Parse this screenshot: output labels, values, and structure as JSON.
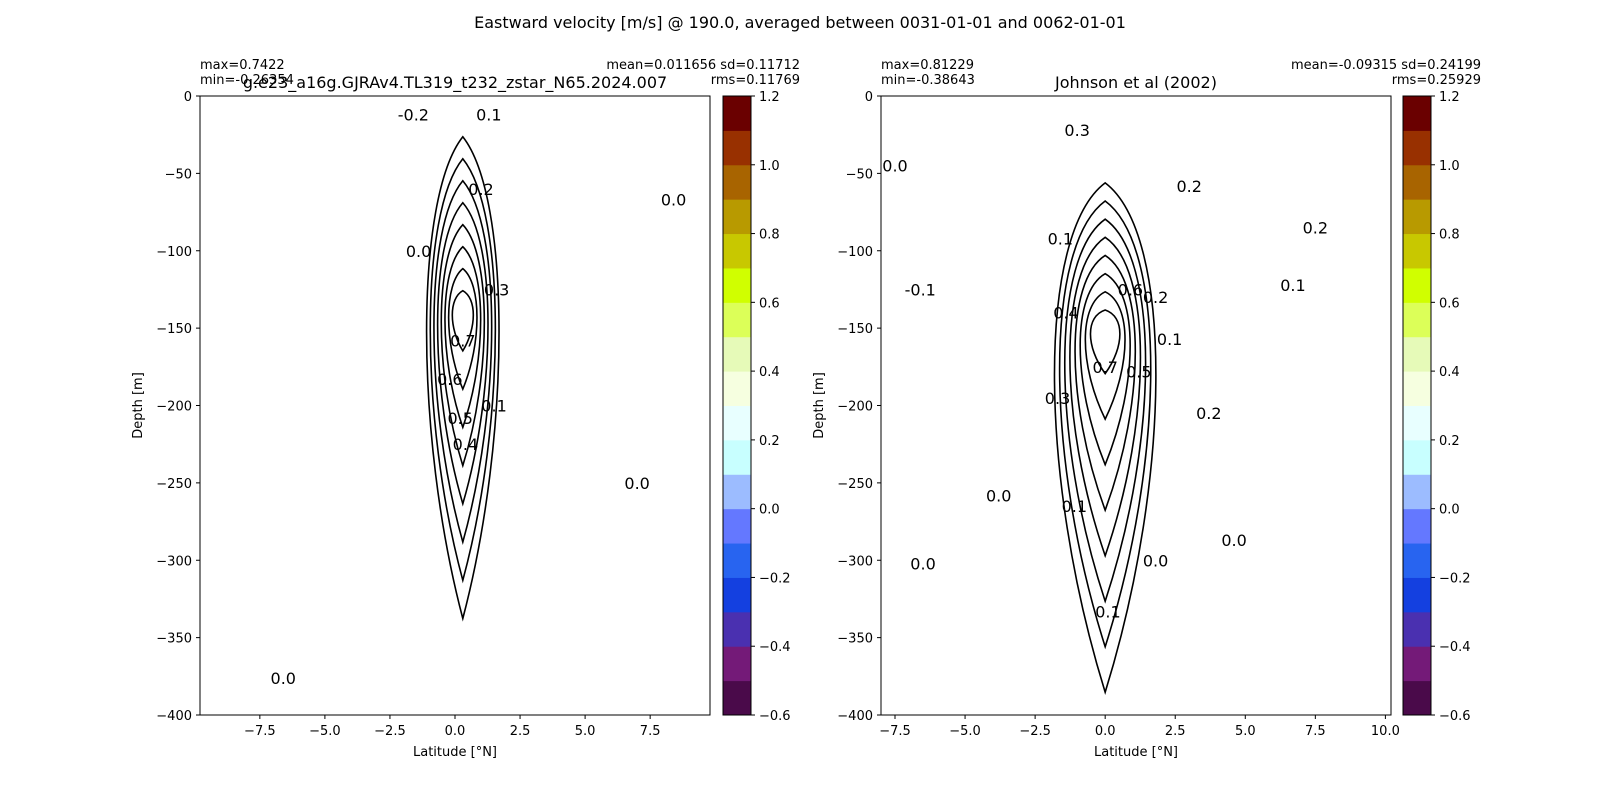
{
  "suptitle": "Eastward velocity [m/s] @ 190.0, averaged between 0031-01-01 and 0062-01-01",
  "levels": [
    -0.6,
    -0.5,
    -0.4,
    -0.3,
    -0.2,
    -0.1,
    0.0,
    0.1,
    0.2,
    0.3,
    0.4,
    0.5,
    0.6,
    0.7,
    0.8,
    0.9,
    1.0,
    1.1,
    1.2
  ],
  "colors": [
    "#4a0a4a",
    "#741a78",
    "#4a30b0",
    "#1440e0",
    "#2864f0",
    "#6478ff",
    "#9cbcff",
    "#c8ffff",
    "#e8ffff",
    "#f6ffe0",
    "#e6fab8",
    "#dcff58",
    "#d0ff00",
    "#c8c800",
    "#b89a00",
    "#a86400",
    "#983000",
    "#6a0000"
  ],
  "chart_data": [
    {
      "type": "heatmap",
      "title": "g.e23_a16g.GJRAv4.TL319_t232_zstar_N65.2024.007",
      "stats_left": [
        "max=0.7422",
        "min=-0.26354"
      ],
      "stats_right": [
        "mean=0.011656 sd=0.11712",
        "rms=0.11769"
      ],
      "xlabel": "Latitude [°N]",
      "ylabel": "Depth [m]",
      "xlim": [
        -9.8,
        9.8
      ],
      "ylim": [
        -400,
        0
      ],
      "xticks": [
        "−7.5",
        "−5.0",
        "−2.5",
        "0.0",
        "2.5",
        "5.0",
        "7.5"
      ],
      "xtick_values": [
        -7.5,
        -5.0,
        -2.5,
        0.0,
        2.5,
        5.0,
        7.5
      ],
      "yticks": [
        "0",
        "−50",
        "−100",
        "−150",
        "−200",
        "−250",
        "−300",
        "−350",
        "−400"
      ],
      "ytick_values": [
        0,
        -50,
        -100,
        -150,
        -200,
        -250,
        -300,
        -350,
        -400
      ],
      "jet": {
        "core_lat": 0.3,
        "core_depth": -140,
        "core_speed": 0.74,
        "half_width_lat": 1.0,
        "top_depth": -25,
        "bottom_depth": -350
      },
      "contour_labels": [
        {
          "text": "-0.2",
          "lat": -1.6,
          "depth": -12
        },
        {
          "text": "0.1",
          "lat": 1.3,
          "depth": -12
        },
        {
          "text": "0.2",
          "lat": 1.0,
          "depth": -60
        },
        {
          "text": "0.0",
          "lat": -1.4,
          "depth": -100
        },
        {
          "text": "0.3",
          "lat": 1.6,
          "depth": -125
        },
        {
          "text": "0.7",
          "lat": 0.3,
          "depth": -158
        },
        {
          "text": "0.6",
          "lat": -0.2,
          "depth": -183
        },
        {
          "text": "0.1",
          "lat": 1.5,
          "depth": -200
        },
        {
          "text": "0.5",
          "lat": 0.2,
          "depth": -208
        },
        {
          "text": "0.4",
          "lat": 0.4,
          "depth": -225
        },
        {
          "text": "0.0",
          "lat": 8.4,
          "depth": -67
        },
        {
          "text": "0.0",
          "lat": 7.0,
          "depth": -250
        },
        {
          "text": "0.0",
          "lat": -6.6,
          "depth": -376
        }
      ],
      "colorbar_ticks": [
        "1.2",
        "1.0",
        "0.8",
        "0.6",
        "0.4",
        "0.2",
        "0.0",
        "−0.2",
        "−0.4",
        "−0.6"
      ]
    },
    {
      "type": "heatmap",
      "title": "Johnson et al (2002)",
      "stats_left": [
        "max=0.81229",
        "min=-0.38643"
      ],
      "stats_right": [
        "mean=-0.09315 sd=0.24199",
        "rms=0.25929"
      ],
      "xlabel": "Latitude [°N]",
      "ylabel": "Depth [m]",
      "xlim": [
        -8.0,
        10.2
      ],
      "ylim": [
        -400,
        0
      ],
      "xticks": [
        "−7.5",
        "−5.0",
        "−2.5",
        "0.0",
        "2.5",
        "5.0",
        "7.5",
        "10.0"
      ],
      "xtick_values": [
        -7.5,
        -5.0,
        -2.5,
        0.0,
        2.5,
        5.0,
        7.5,
        10.0
      ],
      "yticks": [
        "0",
        "−50",
        "−100",
        "−150",
        "−200",
        "−250",
        "−300",
        "−350",
        "−400"
      ],
      "ytick_values": [
        0,
        -50,
        -100,
        -150,
        -200,
        -250,
        -300,
        -350,
        -400
      ],
      "jet": {
        "core_lat": 0.0,
        "core_depth": -150,
        "core_speed": 0.81,
        "half_width_lat": 1.3,
        "top_depth": -55,
        "bottom_depth": -400
      },
      "contour_labels": [
        {
          "text": "0.3",
          "lat": -1.0,
          "depth": -22
        },
        {
          "text": "0.2",
          "lat": 3.0,
          "depth": -58
        },
        {
          "text": "0.0",
          "lat": -7.5,
          "depth": -45
        },
        {
          "text": "0.1",
          "lat": -1.6,
          "depth": -92
        },
        {
          "text": "-0.1",
          "lat": -6.6,
          "depth": -125
        },
        {
          "text": "0.2",
          "lat": 7.5,
          "depth": -85
        },
        {
          "text": "0.1",
          "lat": 6.7,
          "depth": -122
        },
        {
          "text": "0.6",
          "lat": 0.9,
          "depth": -125
        },
        {
          "text": "0.2",
          "lat": 1.8,
          "depth": -130
        },
        {
          "text": "0.4",
          "lat": -1.4,
          "depth": -140
        },
        {
          "text": "0.1",
          "lat": 2.3,
          "depth": -157
        },
        {
          "text": "0.7",
          "lat": 0.0,
          "depth": -175
        },
        {
          "text": "0.5",
          "lat": 1.2,
          "depth": -178
        },
        {
          "text": "0.3",
          "lat": -1.7,
          "depth": -195
        },
        {
          "text": "0.2",
          "lat": 3.7,
          "depth": -205
        },
        {
          "text": "0.0",
          "lat": -3.8,
          "depth": -258
        },
        {
          "text": "0.1",
          "lat": -1.1,
          "depth": -265
        },
        {
          "text": "0.0",
          "lat": 4.6,
          "depth": -287
        },
        {
          "text": "0.0",
          "lat": -6.5,
          "depth": -302
        },
        {
          "text": "0.0",
          "lat": 1.8,
          "depth": -300
        },
        {
          "text": "0.1",
          "lat": 0.1,
          "depth": -333
        }
      ],
      "colorbar_ticks": [
        "1.2",
        "1.0",
        "0.8",
        "0.6",
        "0.4",
        "0.2",
        "0.0",
        "−0.2",
        "−0.4",
        "−0.6"
      ]
    }
  ]
}
